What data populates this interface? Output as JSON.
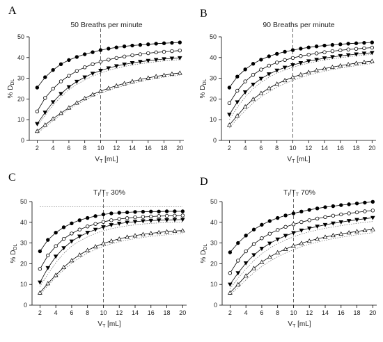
{
  "chart_data": [
    {
      "type": "line",
      "panel_label": "A",
      "title": "50 Breaths per minute",
      "title_main": "50 Breaths per minute",
      "title_sub": "",
      "title_suffix": "",
      "xlabel_main": "V",
      "xlabel_sub": "T",
      "xlabel_unit": " [mL]",
      "ylabel_prefix": "% D",
      "ylabel_sub": "DL",
      "xlim": [
        1,
        20.5
      ],
      "ylim": [
        0,
        50
      ],
      "xticks": [
        2,
        4,
        6,
        8,
        10,
        12,
        14,
        16,
        18,
        20
      ],
      "yticks": [
        0,
        10,
        20,
        30,
        40,
        50
      ],
      "vline_x": 10,
      "x": [
        2,
        3,
        4,
        5,
        6,
        7,
        8,
        9,
        10,
        11,
        12,
        13,
        14,
        15,
        16,
        17,
        18,
        19,
        20
      ],
      "series": [
        {
          "marker": "filled-circle",
          "values": [
            25.5,
            30.5,
            34,
            36.8,
            38.8,
            40.3,
            41.6,
            42.6,
            43.6,
            44.3,
            44.9,
            45.4,
            45.8,
            46.1,
            46.4,
            46.7,
            46.9,
            47.1,
            47.3
          ]
        },
        {
          "marker": "open-circle",
          "values": [
            14,
            20.5,
            25,
            28.5,
            31.2,
            33.5,
            35.3,
            36.8,
            38,
            39,
            39.8,
            40.5,
            41.1,
            41.6,
            42.1,
            42.5,
            42.8,
            43.1,
            43.4
          ]
        },
        {
          "marker": "filled-triangle-down",
          "values": [
            8,
            13.5,
            18.5,
            22.5,
            25.8,
            28.4,
            30.5,
            32.3,
            33.7,
            34.9,
            35.9,
            36.7,
            37.4,
            38,
            38.5,
            38.9,
            39.3,
            39.6,
            39.8
          ]
        },
        {
          "marker": "open-triangle-up",
          "values": [
            4.5,
            7.5,
            10.5,
            13.2,
            15.8,
            18.2,
            20.3,
            22.2,
            23.8,
            25.2,
            26.4,
            27.5,
            28.5,
            29.4,
            30.2,
            30.9,
            31.5,
            32.1,
            32.6
          ]
        }
      ],
      "dotted_envelopes": [
        [
          7,
          12,
          17,
          21,
          24.5,
          27,
          29.2,
          31,
          32.5,
          33.8,
          34.8,
          35.7,
          36.4,
          37,
          37.5,
          38,
          38.4,
          38.7,
          39
        ],
        [
          3.5,
          6.5,
          9.5,
          12.5,
          15,
          17.3,
          19.4,
          21.2,
          22.8,
          24.2,
          25.4,
          26.5,
          27.5,
          28.4,
          29.2,
          29.9,
          30.5,
          31,
          31.5
        ]
      ]
    },
    {
      "type": "line",
      "panel_label": "B",
      "title": "90 Breaths per minute",
      "title_main": "90 Breaths per minute",
      "title_sub": "",
      "title_suffix": "",
      "xlabel_main": "V",
      "xlabel_sub": "T",
      "xlabel_unit": " [mL]",
      "ylabel_prefix": "% D",
      "ylabel_sub": "DL",
      "xlim": [
        1,
        20.5
      ],
      "ylim": [
        0,
        50
      ],
      "xticks": [
        2,
        4,
        6,
        8,
        10,
        12,
        14,
        16,
        18,
        20
      ],
      "yticks": [
        0,
        10,
        20,
        30,
        40,
        50
      ],
      "vline_x": 10,
      "x": [
        2,
        3,
        4,
        5,
        6,
        7,
        8,
        9,
        10,
        11,
        12,
        13,
        14,
        15,
        16,
        17,
        18,
        19,
        20
      ],
      "series": [
        {
          "marker": "filled-circle",
          "values": [
            25.5,
            30.8,
            34.3,
            37,
            39,
            40.6,
            41.8,
            42.8,
            43.6,
            44.3,
            44.9,
            45.4,
            45.8,
            46.1,
            46.4,
            46.7,
            46.9,
            47.1,
            47.3
          ]
        },
        {
          "marker": "open-circle",
          "values": [
            18,
            24,
            28.5,
            31.7,
            34.2,
            36.1,
            37.6,
            38.8,
            39.8,
            40.7,
            41.4,
            42,
            42.6,
            43.1,
            43.5,
            43.9,
            44.2,
            44.5,
            44.8
          ]
        },
        {
          "marker": "filled-triangle-down",
          "values": [
            12.5,
            18.5,
            23.3,
            27,
            29.8,
            32,
            33.8,
            35.2,
            36.4,
            37.4,
            38.3,
            39,
            39.7,
            40.3,
            40.8,
            41.2,
            41.6,
            42,
            42.3
          ]
        },
        {
          "marker": "open-triangle-up",
          "values": [
            7.5,
            12,
            16.3,
            19.9,
            22.8,
            25.2,
            27.3,
            29,
            30.5,
            31.8,
            32.9,
            33.8,
            34.7,
            35.4,
            36.1,
            36.7,
            37.3,
            37.8,
            38.3
          ]
        }
      ],
      "dotted_envelopes": [
        [
          10,
          16,
          21,
          25,
          28,
          30.5,
          32.5,
          34,
          35.3,
          36.4,
          37.3,
          38.1,
          38.8,
          39.4,
          39.9,
          40.4,
          40.8,
          41.2,
          41.5
        ],
        [
          6,
          10.5,
          14.5,
          18,
          21,
          23.5,
          25.6,
          27.4,
          29,
          30.3,
          31.5,
          32.5,
          33.4,
          34.2,
          34.9,
          35.5,
          36.1,
          36.6,
          37.1
        ]
      ]
    },
    {
      "type": "line",
      "panel_label": "C",
      "title": "Ti/TT 30%",
      "title_main": "T",
      "title_sub": "I",
      "title_mid": "/T",
      "title_sub2": "T",
      "title_suffix": " 30%",
      "xlabel_main": "V",
      "xlabel_sub": "T",
      "xlabel_unit": " [mL]",
      "ylabel_prefix": "% D",
      "ylabel_sub": "DL",
      "xlim": [
        1,
        20.5
      ],
      "ylim": [
        0,
        50
      ],
      "xticks": [
        2,
        4,
        6,
        8,
        10,
        12,
        14,
        16,
        18,
        20
      ],
      "yticks": [
        0,
        10,
        20,
        30,
        40,
        50
      ],
      "vline_x": 10,
      "x": [
        2,
        3,
        4,
        5,
        6,
        7,
        8,
        9,
        10,
        11,
        12,
        13,
        14,
        15,
        16,
        17,
        18,
        19,
        20
      ],
      "series": [
        {
          "marker": "filled-circle",
          "values": [
            26,
            31.5,
            35,
            37.6,
            39.5,
            41,
            42.1,
            43,
            43.8,
            44.3,
            44.6,
            44.8,
            45,
            45.1,
            45.2,
            45.2,
            45.3,
            45.3,
            45.3
          ]
        },
        {
          "marker": "open-circle",
          "values": [
            17.5,
            24,
            28.5,
            32,
            34.6,
            36.5,
            38,
            39.2,
            40.2,
            41,
            41.6,
            42,
            42.4,
            42.6,
            42.8,
            43,
            43.1,
            43.2,
            43.3
          ]
        },
        {
          "marker": "filled-triangle-down",
          "values": [
            11,
            18,
            23.5,
            27.6,
            30.8,
            33.2,
            35,
            36.5,
            37.7,
            38.7,
            39.4,
            39.9,
            40.3,
            40.6,
            40.8,
            41,
            41.1,
            41.2,
            41.3
          ]
        },
        {
          "marker": "open-triangle-up",
          "values": [
            6,
            10.5,
            14.5,
            18.3,
            21.6,
            24.3,
            26.5,
            28.3,
            29.8,
            31,
            32,
            32.9,
            33.6,
            34.2,
            34.7,
            35.1,
            35.5,
            35.8,
            36
          ]
        }
      ],
      "dotted_envelopes": [
        [
          47.5,
          47.5,
          47.5,
          47.5,
          47.5,
          47.5,
          47.5,
          47.5,
          47.5,
          47.5,
          47.5,
          47.5,
          47.5,
          47.5,
          47.5,
          47.5,
          47.5,
          47.5,
          47.5
        ],
        [
          9,
          15,
          20.5,
          25,
          28.5,
          31,
          33,
          34.6,
          35.9,
          36.9,
          37.7,
          38.3,
          38.8,
          39.2,
          39.5,
          39.7,
          39.9,
          40,
          40.1
        ],
        [
          5,
          9.5,
          13.5,
          17,
          20.2,
          22.9,
          25.1,
          26.9,
          28.4,
          29.6,
          30.6,
          31.4,
          32.1,
          32.7,
          33.2,
          33.6,
          34,
          34.3,
          34.6
        ]
      ]
    },
    {
      "type": "line",
      "panel_label": "D",
      "title": "Ti/TT 70%",
      "title_main": "T",
      "title_sub": "I",
      "title_mid": "/T",
      "title_sub2": "T",
      "title_suffix": " 70%",
      "xlabel_main": "V",
      "xlabel_sub": "T",
      "xlabel_unit": " [mL]",
      "ylabel_prefix": "% D",
      "ylabel_sub": "DL",
      "xlim": [
        1,
        20.5
      ],
      "ylim": [
        0,
        50
      ],
      "xticks": [
        2,
        4,
        6,
        8,
        10,
        12,
        14,
        16,
        18,
        20
      ],
      "yticks": [
        0,
        10,
        20,
        30,
        40,
        50
      ],
      "vline_x": 10,
      "x": [
        2,
        3,
        4,
        5,
        6,
        7,
        8,
        9,
        10,
        11,
        12,
        13,
        14,
        15,
        16,
        17,
        18,
        19,
        20
      ],
      "series": [
        {
          "marker": "filled-circle",
          "values": [
            25.5,
            30,
            33.6,
            36.5,
            38.8,
            40.6,
            42.1,
            43.3,
            44.3,
            45.2,
            46,
            46.7,
            47.3,
            47.8,
            48.3,
            48.7,
            49.1,
            49.5,
            49.9
          ]
        },
        {
          "marker": "open-circle",
          "values": [
            15.5,
            21.5,
            26,
            29.5,
            32.3,
            34.5,
            36.3,
            37.8,
            39,
            40.1,
            41,
            41.8,
            42.5,
            43.2,
            43.8,
            44.3,
            44.8,
            45.3,
            45.7
          ]
        },
        {
          "marker": "filled-triangle-down",
          "values": [
            10,
            15.5,
            20.3,
            24.2,
            27.3,
            29.8,
            31.8,
            33.5,
            34.9,
            36.1,
            37.1,
            38,
            38.8,
            39.5,
            40.1,
            40.7,
            41.2,
            41.7,
            42.2
          ]
        },
        {
          "marker": "open-triangle-up",
          "values": [
            6,
            10,
            14.2,
            17.8,
            20.8,
            23.3,
            25.4,
            27.1,
            28.6,
            29.9,
            31,
            32,
            32.9,
            33.7,
            34.4,
            35,
            35.6,
            36.1,
            36.6
          ]
        }
      ],
      "dotted_envelopes": [
        [
          8,
          13,
          17.5,
          21.5,
          24.8,
          27.5,
          29.7,
          31.5,
          33,
          34.3,
          35.4,
          36.3,
          37.1,
          37.8,
          38.4,
          39,
          39.5,
          40,
          40.4
        ],
        [
          5,
          8.5,
          12.2,
          15.7,
          18.7,
          21.2,
          23.4,
          25.2,
          26.8,
          28.2,
          29.4,
          30.4,
          31.3,
          32.1,
          32.8,
          33.4,
          34,
          34.5,
          35
        ]
      ]
    }
  ]
}
